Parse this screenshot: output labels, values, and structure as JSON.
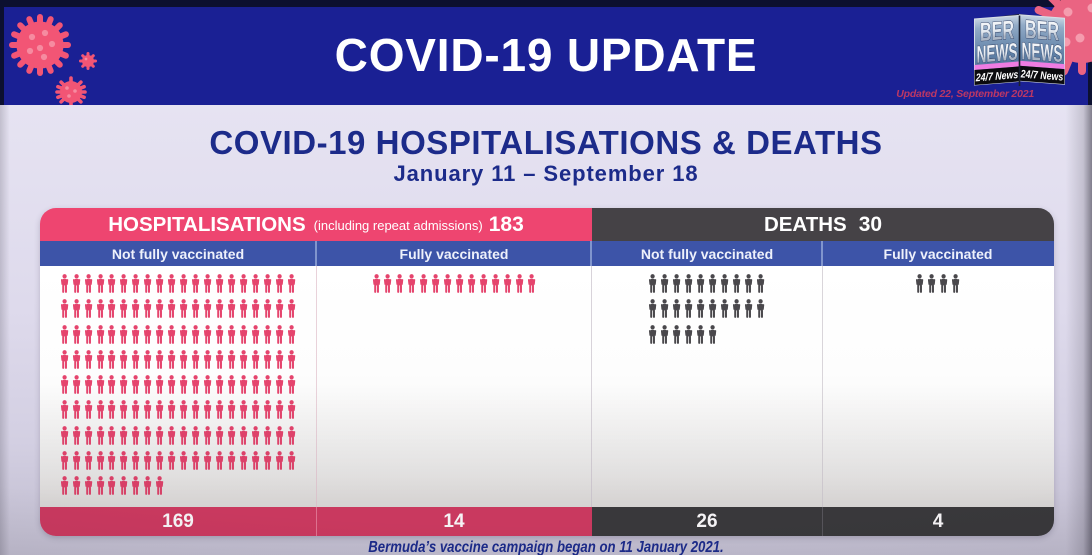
{
  "banner": {
    "title": "COVID-19 UPDATE",
    "updated": "Updated 22, September 2021"
  },
  "logo": {
    "line1": "BER",
    "line2": "NEWS",
    "tagline": "24/7 News"
  },
  "heading": {
    "title": "COVID-19 HOSPITALISATIONS & DEATHS",
    "subtitle": "January 11 – September 18"
  },
  "footer_note": "Bermuda’s vaccine campaign began on 11 January 2021.",
  "colors": {
    "banner_blue": "#1a2094",
    "hospitalisations_pink": "#ee4570",
    "deaths_gray": "#454246",
    "subheader_blue": "#3d54a8",
    "footer_pink": "#c9395f",
    "footer_gray": "#39383b",
    "title_navy": "#1c2b8a",
    "updated_red": "#c43a6b",
    "hosp_icon": "#e5446d",
    "death_icon": "#4a484c"
  },
  "chart_data": {
    "type": "pictogram",
    "title": "COVID-19 HOSPITALISATIONS & DEATHS",
    "subtitle": "January 11 – September 18",
    "groups": [
      {
        "label": "HOSPITALISATIONS",
        "note": "(including repeat admissions)",
        "total": 183,
        "color": "#ee4570",
        "icon_color": "#e5446d",
        "columns": [
          {
            "label": "Not fully vaccinated",
            "value": 169,
            "rows": [
              20,
              20,
              20,
              20,
              20,
              20,
              20,
              20,
              9
            ]
          },
          {
            "label": "Fully vaccinated",
            "value": 14,
            "rows": [
              14
            ]
          }
        ]
      },
      {
        "label": "DEATHS",
        "note": "",
        "total": 30,
        "color": "#454246",
        "icon_color": "#4a484c",
        "columns": [
          {
            "label": "Not fully vaccinated",
            "value": 26,
            "rows": [
              10,
              10,
              6
            ]
          },
          {
            "label": "Fully vaccinated",
            "value": 4,
            "rows": [
              4
            ]
          }
        ]
      }
    ]
  }
}
